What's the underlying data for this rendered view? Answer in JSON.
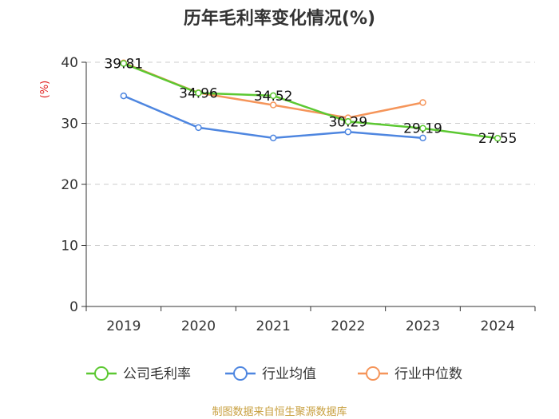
{
  "chart_data": {
    "type": "line",
    "title": "历年毛利率变化情况(%)",
    "ylabel": "(%)",
    "xlabel": "",
    "categories": [
      "2019",
      "2020",
      "2021",
      "2022",
      "2023",
      "2024"
    ],
    "ylim": [
      0,
      40
    ],
    "yticks": [
      "0",
      "10",
      "20",
      "30",
      "40"
    ],
    "grid": true,
    "legend_position": "bottom",
    "series": [
      {
        "name": "公司毛利率",
        "color": "#5cc832",
        "values": [
          39.81,
          34.96,
          34.52,
          30.29,
          29.19,
          27.55
        ],
        "labels": [
          "39.81",
          "34.96",
          "34.52",
          "30.29",
          "29.19",
          "27.55"
        ]
      },
      {
        "name": "行业均值",
        "color": "#4e86e0",
        "values": [
          34.5,
          29.3,
          27.6,
          28.6,
          27.6,
          null
        ]
      },
      {
        "name": "行业中位数",
        "color": "#f5955a",
        "values": [
          39.9,
          35.0,
          33.0,
          30.9,
          33.4,
          null
        ]
      }
    ],
    "source": "制图数据来自恒生聚源数据库"
  }
}
